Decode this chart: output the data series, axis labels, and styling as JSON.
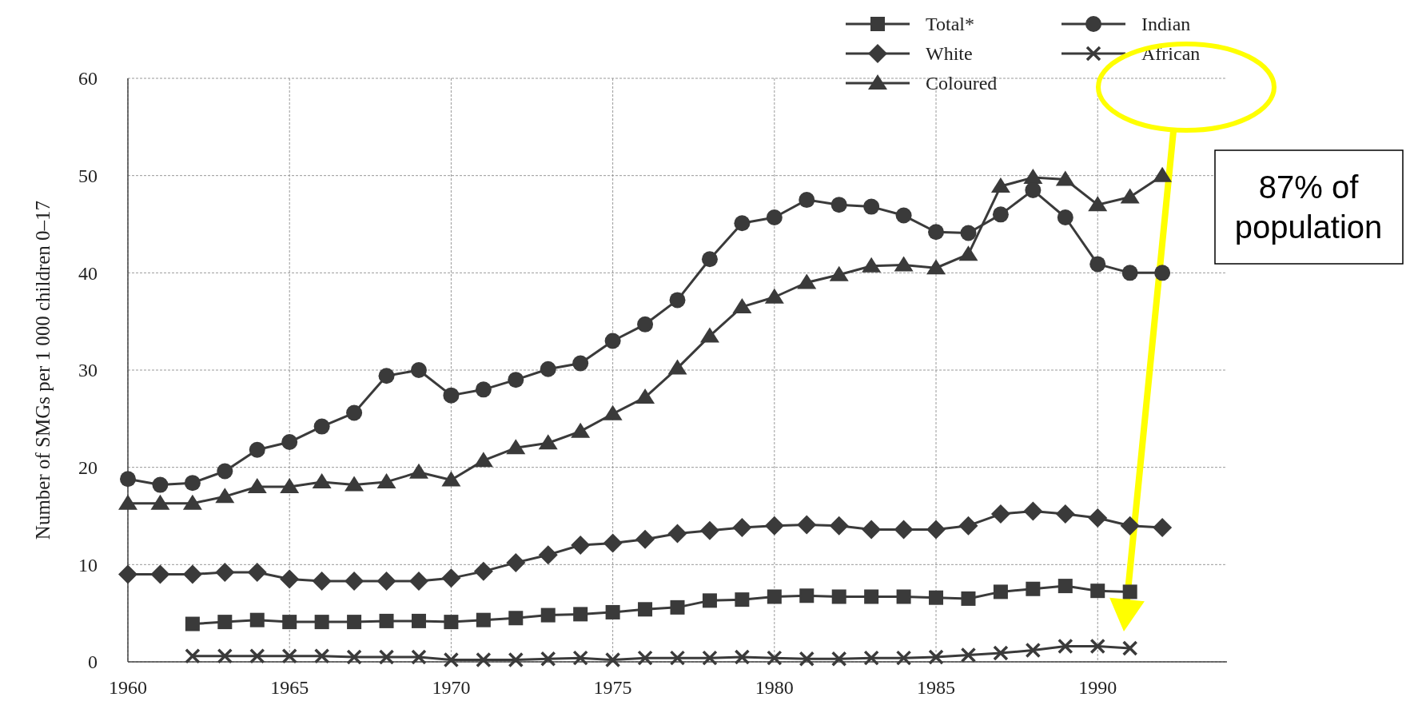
{
  "chart_data": {
    "type": "line",
    "ylabel": "Number of SMGs per 1 000 children 0–17",
    "xlim": [
      1960,
      1994
    ],
    "xticks": [
      1960,
      1965,
      1970,
      1975,
      1980,
      1985,
      1990
    ],
    "ylim": [
      0,
      60
    ],
    "yticks": [
      0,
      10,
      20,
      30,
      40,
      50,
      60
    ],
    "grid": true,
    "legend": "top right",
    "annotations": [
      "87% of population"
    ],
    "series": [
      {
        "name": "Total*",
        "color": "#3a3a3a",
        "marker": "square",
        "x": [
          1962,
          1963,
          1964,
          1965,
          1966,
          1967,
          1968,
          1969,
          1970,
          1971,
          1972,
          1973,
          1974,
          1975,
          1976,
          1977,
          1978,
          1979,
          1980,
          1981,
          1982,
          1983,
          1984,
          1985,
          1986,
          1987,
          1988,
          1989,
          1990,
          1991
        ],
        "values": [
          3.9,
          4.1,
          4.3,
          4.1,
          4.1,
          4.1,
          4.2,
          4.2,
          4.1,
          4.3,
          4.5,
          4.8,
          4.9,
          5.1,
          5.4,
          5.6,
          6.3,
          6.4,
          6.7,
          6.8,
          6.7,
          6.7,
          6.7,
          6.6,
          6.5,
          7.2,
          7.5,
          7.8,
          7.3,
          7.2
        ]
      },
      {
        "name": "White",
        "color": "#3a3a3a",
        "marker": "diamond",
        "x": [
          1960,
          1961,
          1962,
          1963,
          1964,
          1965,
          1966,
          1967,
          1968,
          1969,
          1970,
          1971,
          1972,
          1973,
          1974,
          1975,
          1976,
          1977,
          1978,
          1979,
          1980,
          1981,
          1982,
          1983,
          1984,
          1985,
          1986,
          1987,
          1988,
          1989,
          1990,
          1991,
          1992
        ],
        "values": [
          9,
          9,
          9,
          9.2,
          9.2,
          8.5,
          8.3,
          8.3,
          8.3,
          8.3,
          8.6,
          9.3,
          10.2,
          11,
          12,
          12.2,
          12.6,
          13.2,
          13.5,
          13.8,
          14,
          14.1,
          14,
          13.6,
          13.6,
          13.6,
          14,
          15.2,
          15.5,
          15.2,
          14.8,
          14,
          13.8
        ]
      },
      {
        "name": "Coloured",
        "color": "#3a3a3a",
        "marker": "triangle",
        "x": [
          1960,
          1961,
          1962,
          1963,
          1964,
          1965,
          1966,
          1967,
          1968,
          1969,
          1970,
          1971,
          1972,
          1973,
          1974,
          1975,
          1976,
          1977,
          1978,
          1979,
          1980,
          1981,
          1982,
          1983,
          1984,
          1985,
          1986,
          1987,
          1988,
          1989,
          1990,
          1991,
          1992
        ],
        "values": [
          16.3,
          16.3,
          16.3,
          17,
          18,
          18,
          18.5,
          18.2,
          18.5,
          19.5,
          18.7,
          20.7,
          22,
          22.5,
          23.7,
          25.5,
          27.2,
          30.2,
          33.5,
          36.5,
          37.5,
          39,
          39.8,
          40.7,
          40.8,
          40.5,
          41.9,
          48.9,
          49.8,
          49.6,
          47,
          47.8,
          50
        ]
      },
      {
        "name": "Indian",
        "color": "#3a3a3a",
        "marker": "circle",
        "x": [
          1960,
          1961,
          1962,
          1963,
          1964,
          1965,
          1966,
          1967,
          1968,
          1969,
          1970,
          1971,
          1972,
          1973,
          1974,
          1975,
          1976,
          1977,
          1978,
          1979,
          1980,
          1981,
          1982,
          1983,
          1984,
          1985,
          1986,
          1987,
          1988,
          1989,
          1990,
          1991,
          1992
        ],
        "values": [
          18.8,
          18.2,
          18.4,
          19.6,
          21.8,
          22.6,
          24.2,
          25.6,
          29.4,
          30,
          27.4,
          28,
          29,
          30.1,
          30.7,
          33,
          34.7,
          37.2,
          41.4,
          45.1,
          45.7,
          47.5,
          47,
          46.8,
          45.9,
          44.2,
          44.1,
          46,
          48.5,
          45.7,
          40.9,
          40,
          40
        ]
      },
      {
        "name": "African",
        "color": "#3a3a3a",
        "marker": "cross",
        "x": [
          1962,
          1963,
          1964,
          1965,
          1966,
          1967,
          1968,
          1969,
          1970,
          1971,
          1972,
          1973,
          1974,
          1975,
          1976,
          1977,
          1978,
          1979,
          1980,
          1981,
          1982,
          1983,
          1984,
          1985,
          1986,
          1987,
          1988,
          1989,
          1990,
          1991
        ],
        "values": [
          0.6,
          0.6,
          0.6,
          0.6,
          0.6,
          0.5,
          0.5,
          0.5,
          0.2,
          0.2,
          0.2,
          0.3,
          0.4,
          0.2,
          0.4,
          0.4,
          0.4,
          0.5,
          0.4,
          0.3,
          0.3,
          0.4,
          0.4,
          0.5,
          0.7,
          0.9,
          1.2,
          1.6,
          1.6,
          1.4
        ]
      }
    ]
  }
}
